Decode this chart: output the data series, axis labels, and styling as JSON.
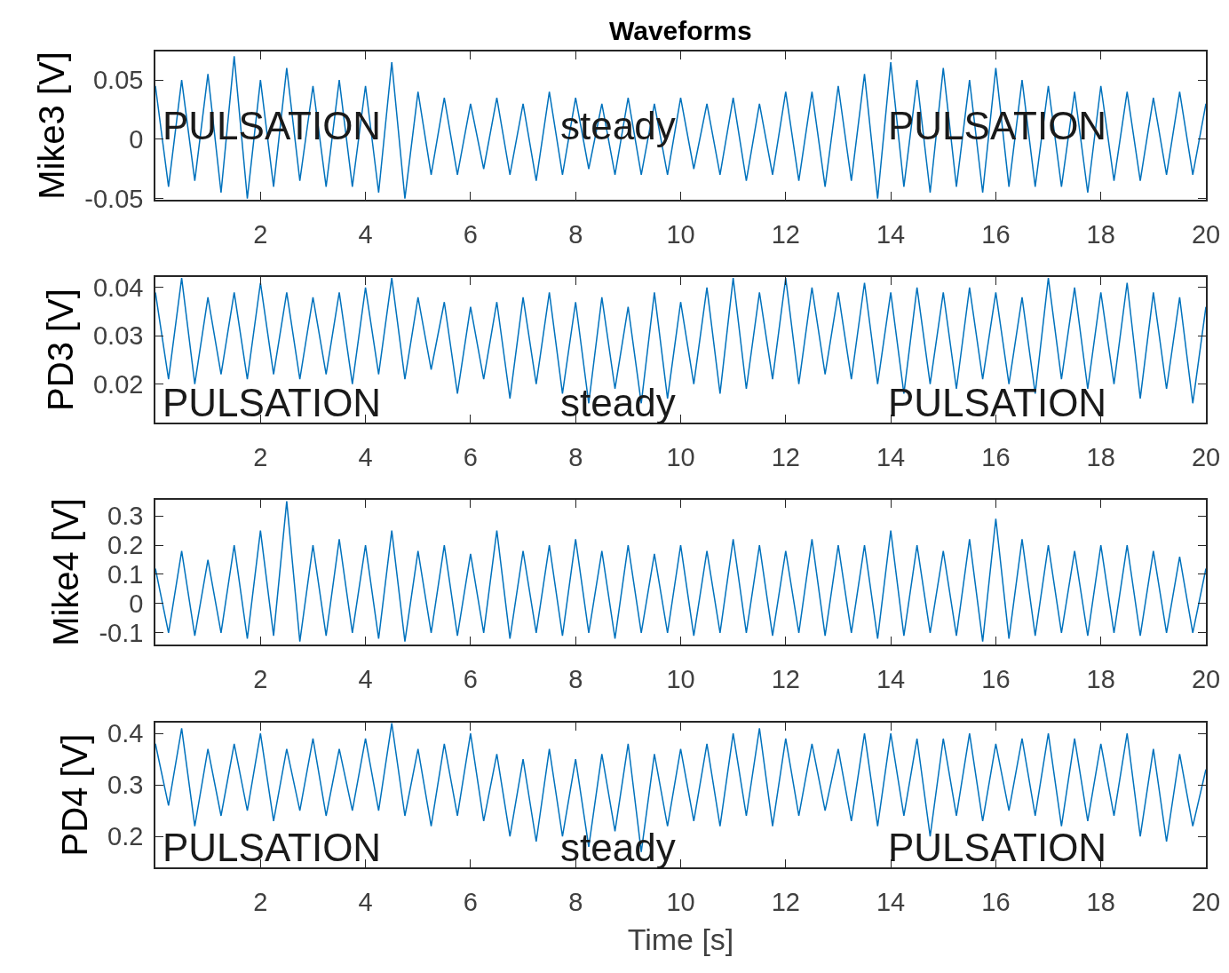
{
  "chart_data": [
    {
      "type": "line",
      "title": "Waveforms",
      "ylabel": "Mike3 [V]",
      "color": "#0072bd",
      "x": [
        0,
        0.25,
        0.5,
        0.75,
        1,
        1.25,
        1.5,
        1.75,
        2,
        2.25,
        2.5,
        2.75,
        3,
        3.25,
        3.5,
        3.75,
        4,
        4.25,
        4.5,
        4.75,
        5,
        5.25,
        5.5,
        5.75,
        6,
        6.25,
        6.5,
        6.75,
        7,
        7.25,
        7.5,
        7.75,
        8,
        8.25,
        8.5,
        8.75,
        9,
        9.25,
        9.5,
        9.75,
        10,
        10.25,
        10.5,
        10.75,
        11,
        11.25,
        11.5,
        11.75,
        12,
        12.25,
        12.5,
        12.75,
        13,
        13.25,
        13.5,
        13.75,
        14,
        14.25,
        14.5,
        14.75,
        15,
        15.25,
        15.5,
        15.75,
        16,
        16.25,
        16.5,
        16.75,
        17,
        17.25,
        17.5,
        17.75,
        18,
        18.25,
        18.5,
        18.75,
        19,
        19.25,
        19.5,
        19.75,
        20
      ],
      "values": [
        0.045,
        -0.04,
        0.05,
        -0.035,
        0.055,
        -0.045,
        0.07,
        -0.05,
        0.05,
        -0.04,
        0.06,
        -0.035,
        0.045,
        -0.04,
        0.05,
        -0.04,
        0.045,
        -0.045,
        0.065,
        -0.05,
        0.04,
        -0.03,
        0.035,
        -0.03,
        0.03,
        -0.025,
        0.035,
        -0.03,
        0.03,
        -0.035,
        0.04,
        -0.03,
        0.035,
        -0.025,
        0.03,
        -0.03,
        0.035,
        -0.03,
        0.03,
        -0.03,
        0.035,
        -0.025,
        0.03,
        -0.03,
        0.035,
        -0.035,
        0.03,
        -0.03,
        0.04,
        -0.035,
        0.04,
        -0.04,
        0.045,
        -0.035,
        0.055,
        -0.05,
        0.065,
        -0.04,
        0.05,
        -0.045,
        0.06,
        -0.04,
        0.05,
        -0.045,
        0.06,
        -0.04,
        0.05,
        -0.04,
        0.045,
        -0.04,
        0.04,
        -0.045,
        0.045,
        -0.035,
        0.04,
        -0.035,
        0.035,
        -0.03,
        0.04,
        -0.03,
        0.03
      ],
      "xlim": [
        0,
        20
      ],
      "ylim": [
        -0.051,
        0.074
      ],
      "xticks": [
        2,
        4,
        6,
        8,
        10,
        12,
        14,
        16,
        18,
        20
      ],
      "yticks": [
        -0.05,
        0,
        0.05
      ],
      "annotations": [
        "PULSATION",
        "steady",
        "PULSATION"
      ]
    },
    {
      "type": "line",
      "ylabel": "PD3 [V]",
      "color": "#0072bd",
      "x": [
        0,
        0.25,
        0.5,
        0.75,
        1,
        1.25,
        1.5,
        1.75,
        2,
        2.25,
        2.5,
        2.75,
        3,
        3.25,
        3.5,
        3.75,
        4,
        4.25,
        4.5,
        4.75,
        5,
        5.25,
        5.5,
        5.75,
        6,
        6.25,
        6.5,
        6.75,
        7,
        7.25,
        7.5,
        7.75,
        8,
        8.25,
        8.5,
        8.75,
        9,
        9.25,
        9.5,
        9.75,
        10,
        10.25,
        10.5,
        10.75,
        11,
        11.25,
        11.5,
        11.75,
        12,
        12.25,
        12.5,
        12.75,
        13,
        13.25,
        13.5,
        13.75,
        14,
        14.25,
        14.5,
        14.75,
        15,
        15.25,
        15.5,
        15.75,
        16,
        16.25,
        16.5,
        16.75,
        17,
        17.25,
        17.5,
        17.75,
        18,
        18.25,
        18.5,
        18.75,
        19,
        19.25,
        19.5,
        19.75,
        20
      ],
      "values": [
        0.039,
        0.021,
        0.042,
        0.02,
        0.038,
        0.022,
        0.039,
        0.021,
        0.041,
        0.022,
        0.039,
        0.021,
        0.038,
        0.022,
        0.039,
        0.02,
        0.04,
        0.022,
        0.042,
        0.021,
        0.038,
        0.023,
        0.037,
        0.018,
        0.036,
        0.021,
        0.037,
        0.017,
        0.038,
        0.02,
        0.039,
        0.018,
        0.037,
        0.016,
        0.038,
        0.019,
        0.036,
        0.016,
        0.039,
        0.017,
        0.037,
        0.02,
        0.04,
        0.018,
        0.042,
        0.019,
        0.039,
        0.021,
        0.042,
        0.02,
        0.04,
        0.022,
        0.039,
        0.021,
        0.041,
        0.02,
        0.039,
        0.018,
        0.04,
        0.02,
        0.039,
        0.019,
        0.04,
        0.021,
        0.039,
        0.02,
        0.038,
        0.018,
        0.042,
        0.021,
        0.04,
        0.019,
        0.039,
        0.02,
        0.041,
        0.017,
        0.039,
        0.019,
        0.038,
        0.016,
        0.036
      ],
      "xlim": [
        0,
        20
      ],
      "ylim": [
        0.012,
        0.0422
      ],
      "xticks": [
        2,
        4,
        6,
        8,
        10,
        12,
        14,
        16,
        18,
        20
      ],
      "yticks": [
        0.02,
        0.03,
        0.04
      ],
      "annotations": [
        "PULSATION",
        "steady",
        "PULSATION"
      ]
    },
    {
      "type": "line",
      "ylabel": "Mike4 [V]",
      "color": "#0072bd",
      "x": [
        0,
        0.25,
        0.5,
        0.75,
        1,
        1.25,
        1.5,
        1.75,
        2,
        2.25,
        2.5,
        2.75,
        3,
        3.25,
        3.5,
        3.75,
        4,
        4.25,
        4.5,
        4.75,
        5,
        5.25,
        5.5,
        5.75,
        6,
        6.25,
        6.5,
        6.75,
        7,
        7.25,
        7.5,
        7.75,
        8,
        8.25,
        8.5,
        8.75,
        9,
        9.25,
        9.5,
        9.75,
        10,
        10.25,
        10.5,
        10.75,
        11,
        11.25,
        11.5,
        11.75,
        12,
        12.25,
        12.5,
        12.75,
        13,
        13.25,
        13.5,
        13.75,
        14,
        14.25,
        14.5,
        14.75,
        15,
        15.25,
        15.5,
        15.75,
        16,
        16.25,
        16.5,
        16.75,
        17,
        17.25,
        17.5,
        17.75,
        18,
        18.25,
        18.5,
        18.75,
        19,
        19.25,
        19.5,
        19.75,
        20
      ],
      "values": [
        0.12,
        -0.1,
        0.18,
        -0.11,
        0.15,
        -0.1,
        0.2,
        -0.12,
        0.25,
        -0.11,
        0.35,
        -0.13,
        0.2,
        -0.11,
        0.22,
        -0.1,
        0.2,
        -0.12,
        0.25,
        -0.13,
        0.18,
        -0.1,
        0.2,
        -0.11,
        0.17,
        -0.1,
        0.25,
        -0.12,
        0.18,
        -0.1,
        0.2,
        -0.11,
        0.22,
        -0.1,
        0.18,
        -0.12,
        0.2,
        -0.1,
        0.17,
        -0.1,
        0.2,
        -0.11,
        0.18,
        -0.1,
        0.22,
        -0.1,
        0.2,
        -0.11,
        0.18,
        -0.1,
        0.22,
        -0.11,
        0.2,
        -0.1,
        0.2,
        -0.12,
        0.25,
        -0.11,
        0.2,
        -0.1,
        0.18,
        -0.11,
        0.22,
        -0.13,
        0.29,
        -0.12,
        0.22,
        -0.11,
        0.2,
        -0.1,
        0.18,
        -0.11,
        0.2,
        -0.1,
        0.2,
        -0.11,
        0.18,
        -0.1,
        0.16,
        -0.1,
        0.12
      ],
      "xlim": [
        0,
        20
      ],
      "ylim": [
        -0.14,
        0.355
      ],
      "xticks": [
        2,
        4,
        6,
        8,
        10,
        12,
        14,
        16,
        18,
        20
      ],
      "yticks": [
        -0.1,
        0,
        0.1,
        0.2,
        0.3
      ]
    },
    {
      "type": "line",
      "ylabel": "PD4 [V]",
      "xlabel": "Time [s]",
      "color": "#0072bd",
      "x": [
        0,
        0.25,
        0.5,
        0.75,
        1,
        1.25,
        1.5,
        1.75,
        2,
        2.25,
        2.5,
        2.75,
        3,
        3.25,
        3.5,
        3.75,
        4,
        4.25,
        4.5,
        4.75,
        5,
        5.25,
        5.5,
        5.75,
        6,
        6.25,
        6.5,
        6.75,
        7,
        7.25,
        7.5,
        7.75,
        8,
        8.25,
        8.5,
        8.75,
        9,
        9.25,
        9.5,
        9.75,
        10,
        10.25,
        10.5,
        10.75,
        11,
        11.25,
        11.5,
        11.75,
        12,
        12.25,
        12.5,
        12.75,
        13,
        13.25,
        13.5,
        13.75,
        14,
        14.25,
        14.5,
        14.75,
        15,
        15.25,
        15.5,
        15.75,
        16,
        16.25,
        16.5,
        16.75,
        17,
        17.25,
        17.5,
        17.75,
        18,
        18.25,
        18.5,
        18.75,
        19,
        19.25,
        19.5,
        19.75,
        20
      ],
      "values": [
        0.38,
        0.26,
        0.41,
        0.22,
        0.37,
        0.24,
        0.38,
        0.25,
        0.4,
        0.23,
        0.37,
        0.25,
        0.39,
        0.24,
        0.37,
        0.25,
        0.39,
        0.25,
        0.42,
        0.24,
        0.37,
        0.22,
        0.38,
        0.24,
        0.4,
        0.23,
        0.36,
        0.2,
        0.35,
        0.19,
        0.37,
        0.2,
        0.35,
        0.18,
        0.36,
        0.21,
        0.38,
        0.17,
        0.36,
        0.22,
        0.37,
        0.23,
        0.38,
        0.22,
        0.4,
        0.24,
        0.41,
        0.22,
        0.39,
        0.24,
        0.38,
        0.25,
        0.37,
        0.23,
        0.4,
        0.22,
        0.4,
        0.24,
        0.39,
        0.2,
        0.39,
        0.24,
        0.4,
        0.23,
        0.38,
        0.25,
        0.39,
        0.24,
        0.4,
        0.22,
        0.39,
        0.23,
        0.38,
        0.24,
        0.4,
        0.2,
        0.37,
        0.19,
        0.36,
        0.22,
        0.33
      ],
      "xlim": [
        0,
        20
      ],
      "ylim": [
        0.14,
        0.421
      ],
      "xticks": [
        2,
        4,
        6,
        8,
        10,
        12,
        14,
        16,
        18,
        20
      ],
      "yticks": [
        0.2,
        0.3,
        0.4
      ],
      "annotations": [
        "PULSATION",
        "steady",
        "PULSATION"
      ]
    }
  ]
}
